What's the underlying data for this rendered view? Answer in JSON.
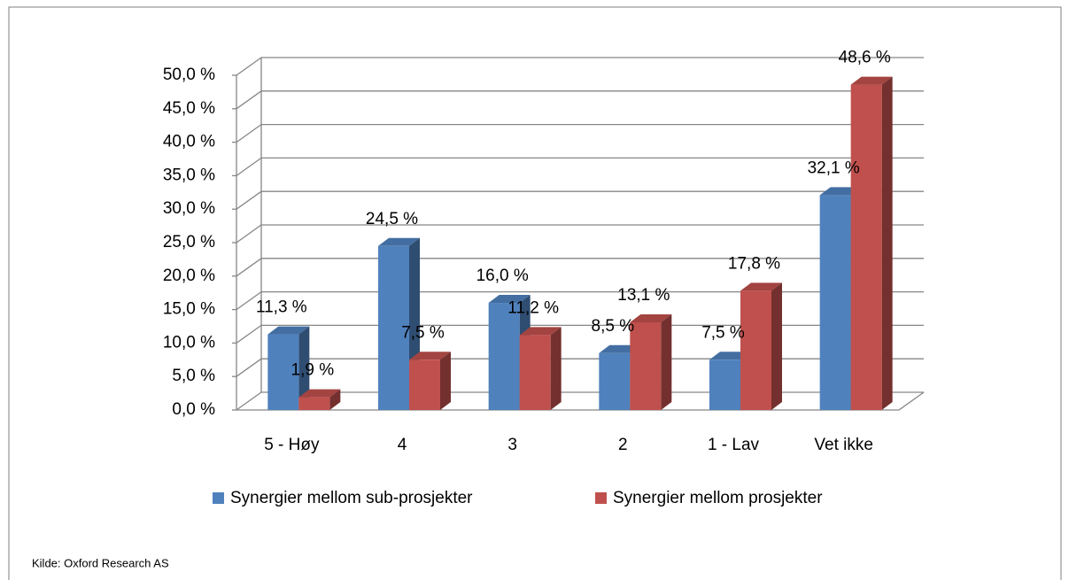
{
  "chart_data": {
    "type": "bar3d",
    "categories": [
      "5 - Høy",
      "4",
      "3",
      "2",
      "1 - Lav",
      "Vet ikke"
    ],
    "series": [
      {
        "name": "Synergier mellom sub-prosjekter",
        "color": "#4f81bd",
        "values": [
          11.3,
          24.5,
          16.0,
          8.5,
          7.5,
          32.1
        ],
        "value_labels": [
          "11,3 %",
          "24,5 %",
          "16,0 %",
          "8,5 %",
          "7,5 %",
          "32,1 %"
        ]
      },
      {
        "name": "Synergier mellom prosjekter",
        "color": "#c0504d",
        "values": [
          1.9,
          7.5,
          11.2,
          13.1,
          17.8,
          48.6
        ],
        "value_labels": [
          "1,9 %",
          "7,5 %",
          "11,2 %",
          "13,1 %",
          "17,8 %",
          "48,6 %"
        ]
      }
    ],
    "ylim": [
      0,
      50
    ],
    "yticks": [
      {
        "value": 0,
        "label": "0,0 %"
      },
      {
        "value": 5,
        "label": "5,0 %"
      },
      {
        "value": 10,
        "label": "10,0 %"
      },
      {
        "value": 15,
        "label": "15,0 %"
      },
      {
        "value": 20,
        "label": "20,0 %"
      },
      {
        "value": 25,
        "label": "25,0 %"
      },
      {
        "value": 30,
        "label": "30,0 %"
      },
      {
        "value": 35,
        "label": "35,0 %"
      },
      {
        "value": 40,
        "label": "40,0 %"
      },
      {
        "value": 45,
        "label": "45,0 %"
      },
      {
        "value": 50,
        "label": "50,0 %"
      }
    ],
    "grid": true,
    "legend": "bottom",
    "source": "Kilde: Oxford Research AS"
  }
}
